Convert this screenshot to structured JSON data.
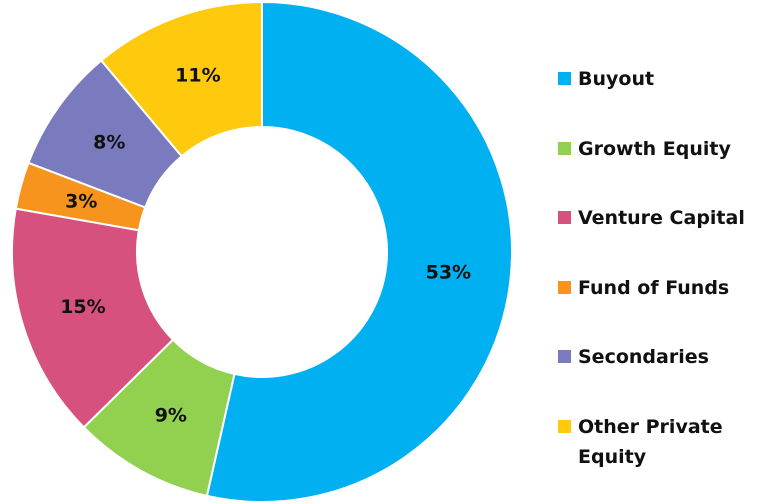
{
  "chart_data": {
    "type": "donut",
    "categories": [
      "Buyout",
      "Growth Equity",
      "Venture Capital",
      "Fund of Funds",
      "Secondaries",
      "Other Private Equity"
    ],
    "values": [
      53,
      9,
      15,
      3,
      8,
      11
    ],
    "value_labels": [
      "53%",
      "9%",
      "15%",
      "3%",
      "8%",
      "11%"
    ],
    "colors": [
      "#00b0f0",
      "#92d050",
      "#d6517d",
      "#f7941d",
      "#7a7bbf",
      "#ffc90e"
    ],
    "legend": "right"
  }
}
